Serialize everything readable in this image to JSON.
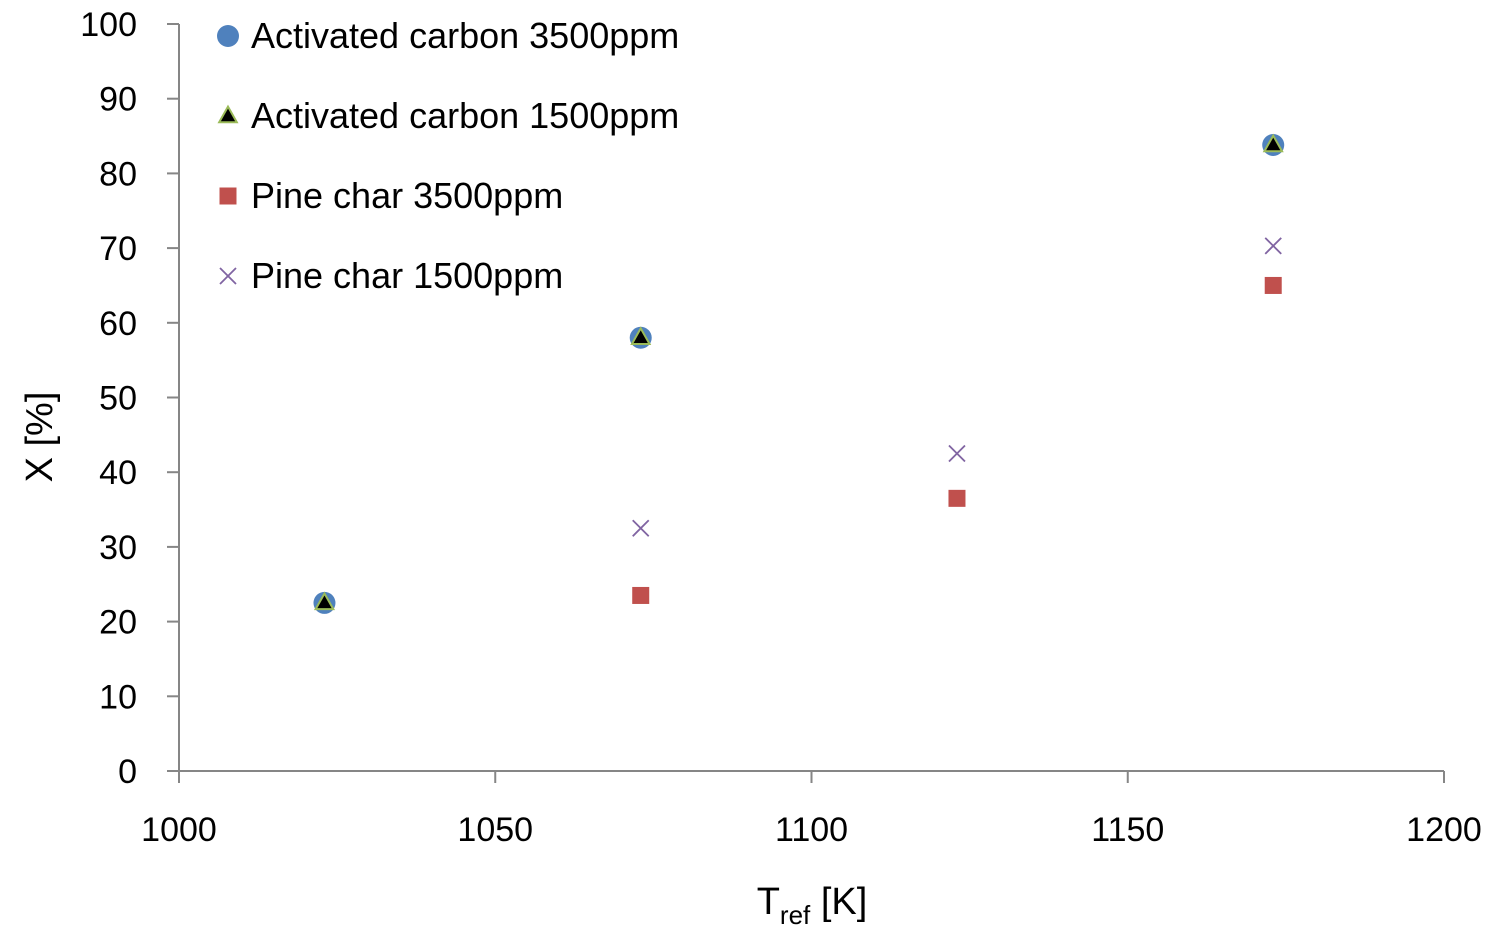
{
  "chart_data": {
    "type": "scatter",
    "xlabel_main": "T",
    "xlabel_sub": "ref",
    "xlabel_unit": " [K]",
    "ylabel": "X [%]",
    "xlim": [
      1000,
      1200
    ],
    "ylim": [
      0,
      100
    ],
    "xticks": [
      1000,
      1050,
      1100,
      1150,
      1200
    ],
    "yticks": [
      0,
      10,
      20,
      30,
      40,
      50,
      60,
      70,
      80,
      90,
      100
    ],
    "grid": false,
    "legend_position": "top-left",
    "series": [
      {
        "name": "Activated carbon 3500ppm",
        "marker": "circle",
        "color": "#4F81BD",
        "x": [
          1023,
          1073,
          1173
        ],
        "y": [
          22.5,
          58,
          83.8
        ]
      },
      {
        "name": "Activated carbon 1500ppm",
        "marker": "triangle",
        "color": "#000000",
        "edge_color": "#9BBB59",
        "x": [
          1023,
          1073,
          1173
        ],
        "y": [
          22.5,
          58,
          83.8
        ]
      },
      {
        "name": "Pine char 3500ppm",
        "marker": "square",
        "color": "#C0504D",
        "x": [
          1073,
          1123,
          1173
        ],
        "y": [
          23.5,
          36.5,
          65
        ]
      },
      {
        "name": "Pine char 1500ppm",
        "marker": "x",
        "color": "#8064A2",
        "x": [
          1073,
          1123,
          1173
        ],
        "y": [
          32.5,
          42.5,
          70.3
        ]
      }
    ]
  }
}
